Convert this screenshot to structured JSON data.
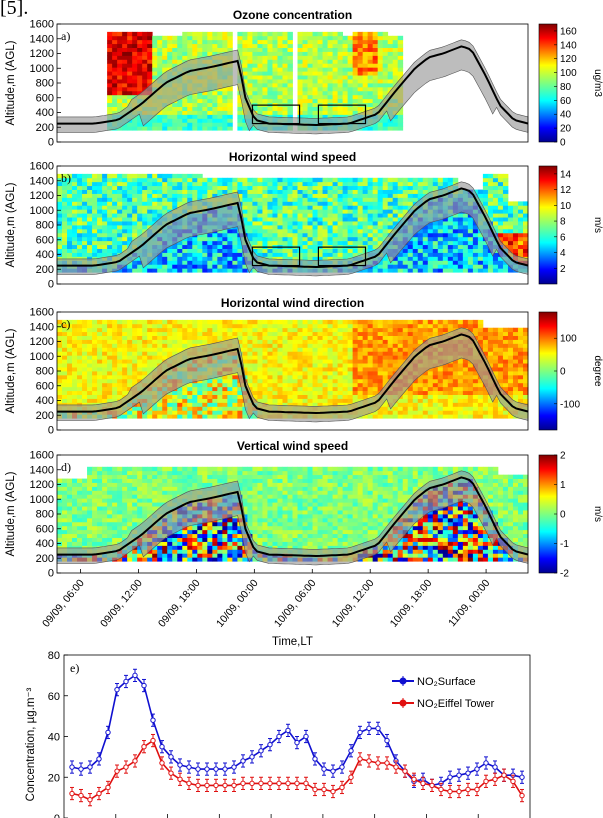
{
  "header_fragment": "[5].",
  "chart_data": [
    {
      "id": "a",
      "type": "heatmap",
      "panel_label": "a)",
      "title": "Ozone concentration",
      "ylabel": "Altitude,m (AGL)",
      "ylim": [
        0,
        1600
      ],
      "yticks": [
        0,
        200,
        400,
        600,
        800,
        1000,
        1200,
        1400,
        1600
      ],
      "colorbar": {
        "ticks": [
          0,
          20,
          40,
          60,
          80,
          100,
          120,
          140,
          160
        ],
        "range": [
          0,
          170
        ],
        "unit": "ug/m3"
      },
      "boundary_layer_line": true,
      "boxes": true
    },
    {
      "id": "b",
      "type": "heatmap",
      "panel_label": "b)",
      "title": "Horizontal wind speed",
      "ylabel": "Altitude,m (AGL)",
      "ylim": [
        0,
        1600
      ],
      "yticks": [
        0,
        200,
        400,
        600,
        800,
        1000,
        1200,
        1400,
        1600
      ],
      "colorbar": {
        "ticks": [
          2,
          4,
          6,
          8,
          10,
          12,
          14
        ],
        "range": [
          0,
          15
        ],
        "unit": "m/s"
      },
      "boundary_layer_line": true,
      "boxes": true
    },
    {
      "id": "c",
      "type": "heatmap",
      "panel_label": "c)",
      "title": "Horizontal wind direction",
      "ylabel": "Altitude,m (AGL)",
      "ylim": [
        0,
        1600
      ],
      "yticks": [
        0,
        200,
        400,
        600,
        800,
        1000,
        1200,
        1400,
        1600
      ],
      "colorbar": {
        "ticks": [
          -100,
          0,
          100
        ],
        "range": [
          -180,
          180
        ],
        "unit": "degree"
      },
      "boundary_layer_line": true,
      "boxes": false
    },
    {
      "id": "d",
      "type": "heatmap",
      "panel_label": "d)",
      "title": "Vertical wind speed",
      "ylabel": "Altitude,m (AGL)",
      "ylim": [
        0,
        1600
      ],
      "yticks": [
        0,
        200,
        400,
        600,
        800,
        1000,
        1200,
        1400,
        1600
      ],
      "colorbar": {
        "ticks": [
          -2,
          -1,
          0,
          1,
          2
        ],
        "range": [
          -2,
          2
        ],
        "unit": "m/s"
      },
      "boundary_layer_line": true,
      "boxes": false,
      "x_tick_labels": [
        "09/09, 06:00",
        "09/09, 12:00",
        "09/09, 18:00",
        "10/09, 00:00",
        "10/09, 06:00",
        "10/09, 12:00",
        "10/09, 18:00",
        "11/09, 00:00"
      ],
      "xlabel": "Time,LT"
    },
    {
      "id": "e",
      "type": "line",
      "panel_label": "e)",
      "ylabel": "Concentration, µg.m⁻³",
      "ylim": [
        0,
        80
      ],
      "yticks": [
        0,
        20,
        40,
        60,
        80
      ],
      "legend_placement": "top-right",
      "series": [
        {
          "name": "NO₂Surface",
          "color": "#1010d0",
          "values": [
            25,
            24,
            25,
            29,
            42,
            63,
            67,
            70,
            65,
            48,
            35,
            30,
            26,
            25,
            24,
            24,
            24,
            24,
            25,
            28,
            30,
            33,
            36,
            40,
            43,
            37,
            40,
            29,
            24,
            23,
            25,
            33,
            42,
            44,
            44,
            38,
            28,
            23,
            18,
            19,
            16,
            17,
            20,
            21,
            22,
            24,
            27,
            25,
            21,
            21,
            20
          ]
        },
        {
          "name": "NO₂Eiffel Tower",
          "color": "#e01010",
          "values": [
            12,
            11,
            9,
            12,
            15,
            23,
            25,
            28,
            35,
            38,
            27,
            22,
            19,
            17,
            16,
            16,
            16,
            16,
            16,
            17,
            17,
            17,
            17,
            17,
            17,
            17,
            17,
            14,
            14,
            13,
            15,
            20,
            29,
            28,
            27,
            27,
            25,
            23,
            19,
            17,
            16,
            14,
            13,
            13,
            14,
            14,
            18,
            19,
            21,
            18,
            11
          ]
        }
      ]
    }
  ]
}
